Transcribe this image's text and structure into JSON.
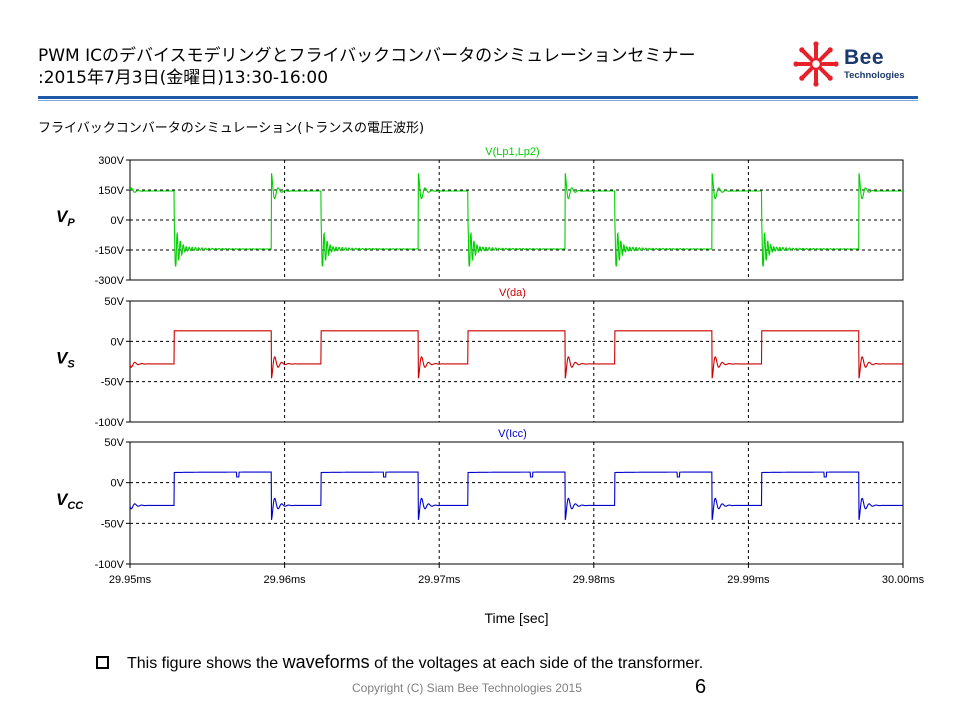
{
  "header": {
    "title_line1": "PWM ICのデバイスモデリングとフライバックコンバータのシミュレーションセミナー",
    "title_line2": ":2015年7月3日(金曜日)13:30-16:00"
  },
  "logo": {
    "name": "Bee",
    "subtitle": "Technologies",
    "colors": {
      "star": "#e8202a",
      "text": "#1b3a6b"
    }
  },
  "chart_caption": "フライバックコンバータのシミュレーション(トランスの電圧波形)",
  "chart_data": {
    "type": "line",
    "xlabel": "Time [sec]",
    "x_range_ms": [
      29.95,
      30.0
    ],
    "x_ticks": [
      "29.95ms",
      "29.96ms",
      "29.97ms",
      "29.98ms",
      "29.99ms",
      "30.00ms"
    ],
    "grid": true,
    "panels": [
      {
        "signal": "V(Lp1,Lp2)",
        "label_main": "V",
        "label_sub": "P",
        "color": "#00d000",
        "ylim": [
          -300,
          300
        ],
        "y_ticks": [
          "300V",
          "150V",
          "0V",
          "-150V",
          "-300V"
        ],
        "high_level": 145,
        "low_level": -145,
        "ringing": true
      },
      {
        "signal": "V(da)",
        "label_main": "V",
        "label_sub": "S",
        "color": "#cc0000",
        "ylim": [
          -100,
          50
        ],
        "y_ticks": [
          "50V",
          "0V",
          "-50V",
          "-100V"
        ],
        "high_level": 13,
        "low_level": -28
      },
      {
        "signal": "V(Icc)",
        "label_main": "V",
        "label_sub": "CC",
        "color": "#0000cc",
        "ylim": [
          -100,
          50
        ],
        "y_ticks": [
          "50V",
          "0V",
          "-50V",
          "-100V"
        ],
        "high_level": 13,
        "low_level": -28
      }
    ]
  },
  "bullet": {
    "text_before": "This figure shows the ",
    "emphasis": "waveforms",
    "text_after": " of the voltages at each side of the transformer."
  },
  "footer": {
    "copyright": "Copyright (C) Siam Bee Technologies 2015",
    "page": "6"
  }
}
